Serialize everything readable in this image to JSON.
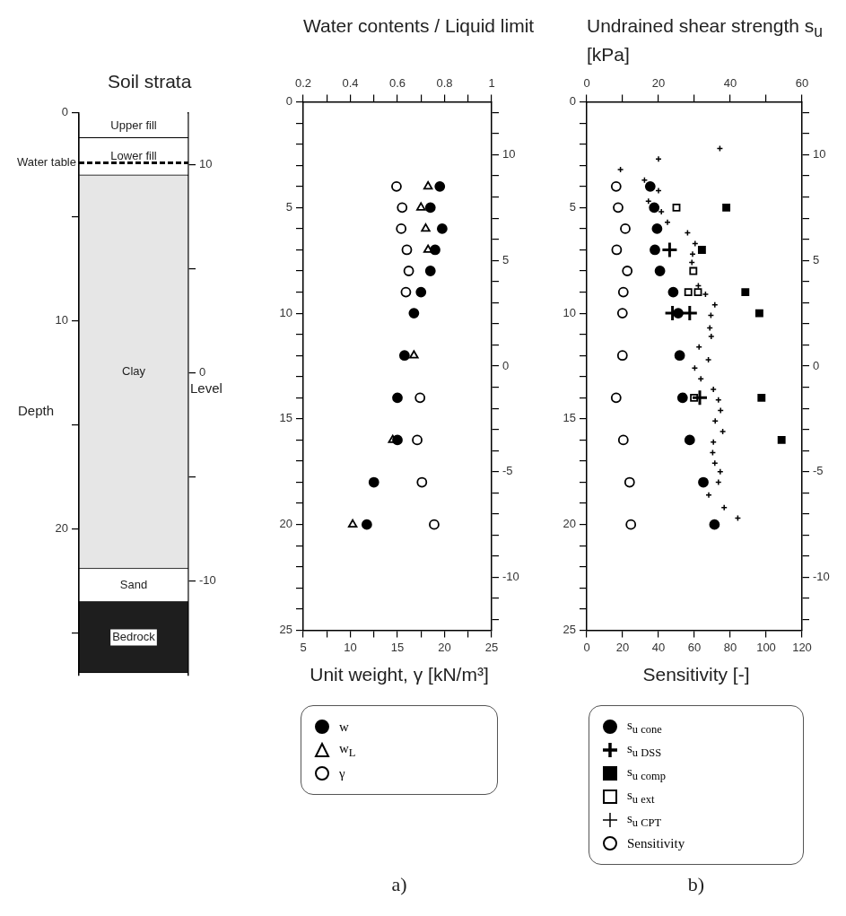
{
  "chart_data": [
    {
      "type": "bar",
      "title": "Soil strata",
      "ylabel": "Depth",
      "y2label": "Level",
      "categories": [
        null
      ],
      "stacked": true,
      "legend": false,
      "grid": false,
      "ylim": [
        27,
        0
      ],
      "yticks": [
        0,
        {
          "value": 5,
          "label": null
        },
        10,
        {
          "value": 15,
          "label": null
        },
        20,
        {
          "value": 25,
          "label": null
        }
      ],
      "y2lim": [
        -14.5,
        12.5
      ],
      "y2ticks": [
        10,
        {
          "value": 5,
          "label": null
        },
        0,
        {
          "value": -5,
          "label": null
        },
        -10
      ],
      "series": [
        {
          "name": "Upper fill",
          "color": "#ffffff",
          "values": [
            1.2
          ]
        },
        {
          "name": "Lower fill",
          "color": "#ffffff",
          "values": [
            1.8
          ]
        },
        {
          "name": "Clay",
          "color": "#e6e6e6",
          "values": [
            18.9
          ]
        },
        {
          "name": "Sand",
          "color": "#ffffff",
          "values": [
            1.6
          ]
        },
        {
          "name": "Bedrock",
          "color": "#1e1e1e",
          "values": [
            3.4
          ]
        }
      ],
      "ref_lines": [
        {
          "axis": "y",
          "value": 2.4,
          "label": "Water table",
          "color": "#000000",
          "line_style": "dashed"
        }
      ]
    },
    {
      "type": "scatter",
      "x2label": "Water contents / Liquid limit",
      "xlabel": "Unit weight, γ [kN/m³]",
      "legend": "bottom",
      "grid": false,
      "annotations": [
        "a)"
      ],
      "xlim": [
        5,
        25
      ],
      "xticks": [
        5,
        {
          "value": 7.5,
          "label": null
        },
        10,
        {
          "value": 12.5,
          "label": null
        },
        15,
        {
          "value": 17.5,
          "label": null
        },
        20,
        {
          "value": 22.5,
          "label": null
        },
        25
      ],
      "x2lim": [
        0.2,
        1
      ],
      "x2ticks": [
        0.2,
        {
          "value": 0.3,
          "label": null
        },
        0.4,
        {
          "value": 0.5,
          "label": null
        },
        0.6,
        {
          "value": 0.7,
          "label": null
        },
        0.8,
        {
          "value": 0.9,
          "label": null
        },
        1
      ],
      "ylim": [
        25,
        0
      ],
      "yticks": [
        0,
        {
          "value": 1,
          "label": null
        },
        {
          "value": 2,
          "label": null
        },
        {
          "value": 3,
          "label": null
        },
        {
          "value": 4,
          "label": null
        },
        5,
        {
          "value": 6,
          "label": null
        },
        {
          "value": 7,
          "label": null
        },
        {
          "value": 8,
          "label": null
        },
        {
          "value": 9,
          "label": null
        },
        10,
        {
          "value": 11,
          "label": null
        },
        {
          "value": 12,
          "label": null
        },
        {
          "value": 13,
          "label": null
        },
        {
          "value": 14,
          "label": null
        },
        15,
        {
          "value": 16,
          "label": null
        },
        {
          "value": 17,
          "label": null
        },
        {
          "value": 18,
          "label": null
        },
        {
          "value": 19,
          "label": null
        },
        20,
        {
          "value": 21,
          "label": null
        },
        {
          "value": 22,
          "label": null
        },
        {
          "value": 23,
          "label": null
        },
        {
          "value": 24,
          "label": null
        },
        25
      ],
      "y2lim": [
        -12.5,
        12.5
      ],
      "y2ticks": [
        {
          "value": 12,
          "label": null
        },
        {
          "value": 11,
          "label": null
        },
        10,
        {
          "value": 9,
          "label": null
        },
        {
          "value": 8,
          "label": null
        },
        {
          "value": 7,
          "label": null
        },
        {
          "value": 6,
          "label": null
        },
        5,
        {
          "value": 4,
          "label": null
        },
        {
          "value": 3,
          "label": null
        },
        {
          "value": 2,
          "label": null
        },
        {
          "value": 1,
          "label": null
        },
        0,
        {
          "value": -1,
          "label": null
        },
        {
          "value": -2,
          "label": null
        },
        {
          "value": -3,
          "label": null
        },
        {
          "value": -4,
          "label": null
        },
        -5,
        {
          "value": -6,
          "label": null
        },
        {
          "value": -7,
          "label": null
        },
        {
          "value": -8,
          "label": null
        },
        {
          "value": -9,
          "label": null
        },
        -10,
        {
          "value": -11,
          "label": null
        },
        {
          "value": -12,
          "label": null
        }
      ],
      "series": [
        {
          "name": "w",
          "color": "#000000",
          "marker": "circle",
          "axis": "x2",
          "x": [
            0.78,
            0.74,
            0.79,
            0.76,
            0.74,
            0.7,
            0.67,
            0.63,
            0.6,
            0.6,
            0.5,
            0.47
          ],
          "values": [
            4,
            5,
            6,
            7,
            8,
            9,
            10,
            12,
            14,
            16,
            18,
            20
          ]
        },
        {
          "name": "w$_{L}$",
          "color": "#000000",
          "marker": "triangle",
          "axis": "x2",
          "x": [
            0.73,
            0.7,
            0.72,
            0.73,
            0.67,
            0.58,
            0.41
          ],
          "values": [
            4,
            5,
            6,
            7,
            12,
            16,
            20
          ]
        },
        {
          "name": "γ",
          "color": "#000000",
          "marker": "circle",
          "x": [
            14.9,
            15.5,
            15.4,
            16,
            16.2,
            15.9,
            17.4,
            17.1,
            17.6,
            18.9
          ],
          "values": [
            4,
            5,
            6,
            7,
            8,
            9,
            14,
            16,
            18,
            20
          ]
        }
      ]
    },
    {
      "type": "scatter",
      "x2label": "Undrained shear strength s$_{u}$ [kPa]",
      "xlabel": "Sensitivity [-]",
      "legend": "bottom",
      "grid": false,
      "annotations": [
        "b)"
      ],
      "xlim": [
        0,
        120
      ],
      "xticks": [
        0,
        20,
        40,
        60,
        80,
        100,
        120
      ],
      "x2lim": [
        0,
        60
      ],
      "x2ticks": [
        0,
        {
          "value": 10,
          "label": null
        },
        20,
        {
          "value": 30,
          "label": null
        },
        40,
        {
          "value": 50,
          "label": null
        },
        60
      ],
      "ylim": [
        25,
        0
      ],
      "yticks": [
        0,
        {
          "value": 1,
          "label": null
        },
        {
          "value": 2,
          "label": null
        },
        {
          "value": 3,
          "label": null
        },
        {
          "value": 4,
          "label": null
        },
        5,
        {
          "value": 6,
          "label": null
        },
        {
          "value": 7,
          "label": null
        },
        {
          "value": 8,
          "label": null
        },
        {
          "value": 9,
          "label": null
        },
        10,
        {
          "value": 11,
          "label": null
        },
        {
          "value": 12,
          "label": null
        },
        {
          "value": 13,
          "label": null
        },
        {
          "value": 14,
          "label": null
        },
        15,
        {
          "value": 16,
          "label": null
        },
        {
          "value": 17,
          "label": null
        },
        {
          "value": 18,
          "label": null
        },
        {
          "value": 19,
          "label": null
        },
        20,
        {
          "value": 21,
          "label": null
        },
        {
          "value": 22,
          "label": null
        },
        {
          "value": 23,
          "label": null
        },
        {
          "value": 24,
          "label": null
        },
        25
      ],
      "y2lim": [
        -12.5,
        12.5
      ],
      "y2ticks": [
        {
          "value": 12,
          "label": null
        },
        {
          "value": 11,
          "label": null
        },
        10,
        {
          "value": 9,
          "label": null
        },
        {
          "value": 8,
          "label": null
        },
        {
          "value": 7,
          "label": null
        },
        {
          "value": 6,
          "label": null
        },
        5,
        {
          "value": 4,
          "label": null
        },
        {
          "value": 3,
          "label": null
        },
        {
          "value": 2,
          "label": null
        },
        {
          "value": 1,
          "label": null
        },
        0,
        {
          "value": -1,
          "label": null
        },
        {
          "value": -2,
          "label": null
        },
        {
          "value": -3,
          "label": null
        },
        {
          "value": -4,
          "label": null
        },
        -5,
        {
          "value": -6,
          "label": null
        },
        {
          "value": -7,
          "label": null
        },
        {
          "value": -8,
          "label": null
        },
        {
          "value": -9,
          "label": null
        },
        -10,
        {
          "value": -11,
          "label": null
        },
        {
          "value": -12,
          "label": null
        }
      ],
      "series": [
        {
          "name": "s$_{u cone}$",
          "color": "#000000",
          "marker": "circle",
          "axis": "x2",
          "x": [
            17.7,
            18.8,
            19.6,
            19,
            20.4,
            24.1,
            25.5,
            25.9,
            26.7,
            28.7,
            32.5,
            35.6
          ],
          "values": [
            4,
            5,
            6,
            7,
            8,
            9,
            10,
            12,
            14,
            16,
            18,
            20
          ]
        },
        {
          "name": "s$_{u DSS}$",
          "color": "#000000",
          "marker": "cross",
          "axis": "x2",
          "x": [
            23.1,
            23.9,
            28.7,
            31.5
          ],
          "values": [
            7,
            10,
            10,
            14
          ]
        },
        {
          "name": "s$_{u comp}$",
          "color": "#000000",
          "marker": "square",
          "axis": "x2",
          "x": [
            38.9,
            32.1,
            44.2,
            48.1,
            48.7,
            54.3
          ],
          "values": [
            5,
            7,
            9,
            10,
            14,
            16
          ]
        },
        {
          "name": "s$_{u ext}$",
          "color": "#000000",
          "marker": "square",
          "axis": "x2",
          "x": [
            25,
            29.7,
            28.3,
            31,
            29.9
          ],
          "values": [
            5,
            8,
            9,
            9,
            14
          ]
        },
        {
          "name": "s$_{u CPT}$",
          "color": "#000000",
          "marker": "cross",
          "axis": "x2",
          "x": [
            37.1,
            20,
            9.4,
            16.1,
            20,
            17.2,
            20.8,
            22.5,
            28.1,
            30.2,
            29.5,
            29.3,
            31.1,
            33.1,
            35.7,
            34.6,
            34.3,
            34.7,
            31.3,
            33.9,
            30.1,
            31.8,
            35.3,
            36.7,
            37.3,
            35.8,
            37.9,
            35.3,
            35.1,
            35.7,
            37.2,
            36.7,
            34,
            38.3,
            42.1
          ],
          "values": [
            2.2,
            2.7,
            3.2,
            3.7,
            4.2,
            4.7,
            5.2,
            5.7,
            6.2,
            6.7,
            7.2,
            7.6,
            8.7,
            9.1,
            9.6,
            10.1,
            10.7,
            11.1,
            11.6,
            12.2,
            12.6,
            13.1,
            13.6,
            14.1,
            14.6,
            15.1,
            15.6,
            16.1,
            16.6,
            17.1,
            17.5,
            18,
            18.6,
            19.2,
            19.7
          ]
        },
        {
          "name": "Sensitivity",
          "color": "#000000",
          "marker": "circle",
          "x": [
            16.4,
            17.5,
            21.5,
            16.7,
            22.6,
            20.4,
            19.9,
            19.9,
            16.4,
            20.4,
            23.9,
            24.6
          ],
          "values": [
            4,
            5,
            6,
            7,
            8,
            9,
            10,
            12,
            14,
            16,
            18,
            20
          ]
        }
      ]
    }
  ]
}
